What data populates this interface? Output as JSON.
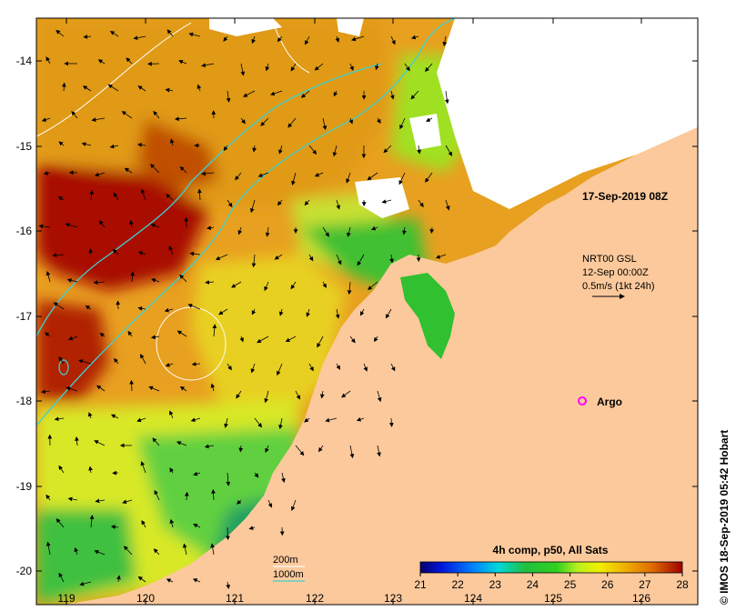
{
  "map": {
    "x_ticks": [
      "119",
      "120",
      "121",
      "122",
      "123",
      "124",
      "125",
      "126"
    ],
    "y_ticks": [
      "-14",
      "-15",
      "-16",
      "-17",
      "-18",
      "-19",
      "-20"
    ],
    "date_label": "17-Sep-2019 08Z",
    "current_legend": {
      "line1": "NRT00 GSL",
      "line2": "12-Sep 00:00Z",
      "line3": "0.5m/s (1kt 24h)"
    },
    "argo_label": "Argo",
    "depth_legend": {
      "line1": "200m",
      "line2": "1000m"
    },
    "colorbar": {
      "title": "4h comp, p50, All Sats",
      "ticks": [
        "21",
        "22",
        "23",
        "24",
        "25",
        "26",
        "27",
        "28"
      ]
    },
    "credit": "© IMOS 18-Sep-2019 05:42 Hobart",
    "colors": {
      "land": "#fcc99c",
      "isobath_200m": "#ffffff",
      "isobath_1000m": "#3fd0d0",
      "argo_marker": "#ff00ff"
    }
  }
}
